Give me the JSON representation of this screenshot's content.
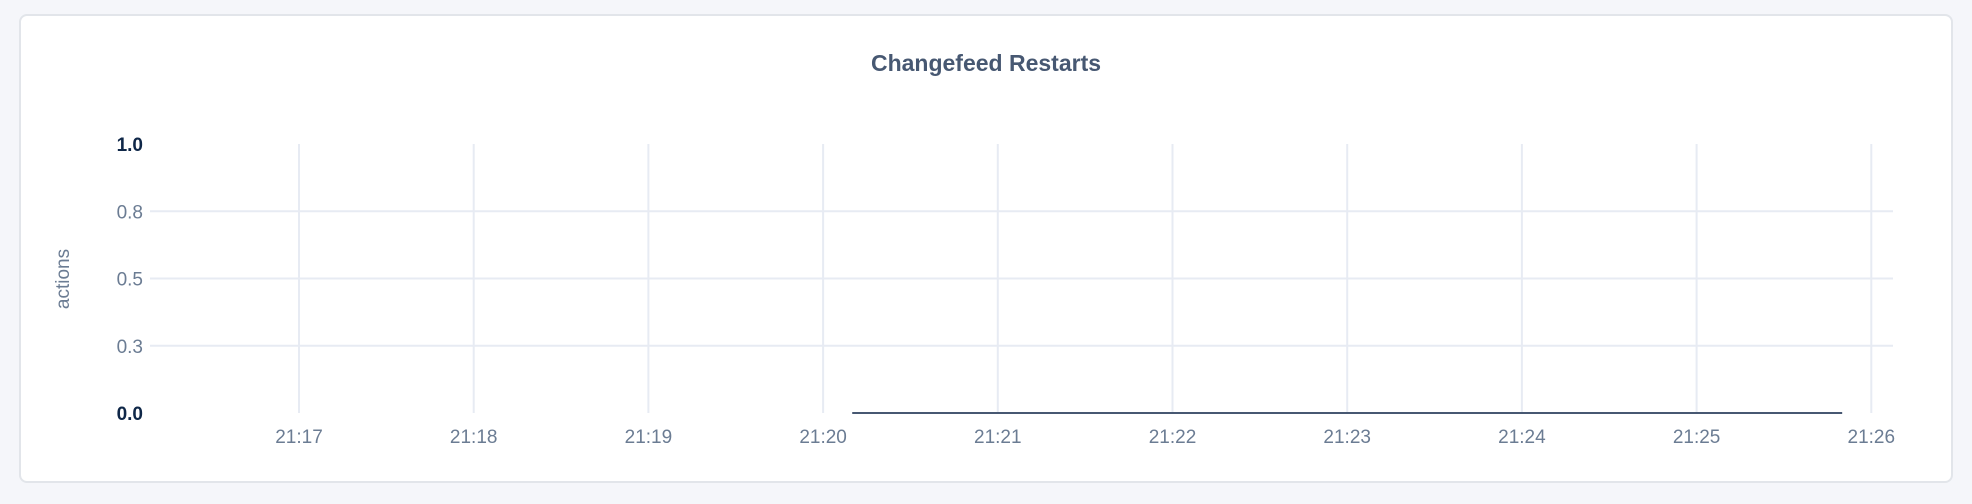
{
  "chart_data": {
    "type": "line",
    "title": "Changefeed Restarts",
    "xlabel": "",
    "ylabel": "actions",
    "ylim": [
      0,
      1
    ],
    "y_ticks": [
      {
        "value": 0,
        "label": "0.0",
        "strong": true
      },
      {
        "value": 0.25,
        "label": "0.3",
        "strong": false
      },
      {
        "value": 0.5,
        "label": "0.5",
        "strong": false
      },
      {
        "value": 0.75,
        "label": "0.8",
        "strong": false
      },
      {
        "value": 1,
        "label": "1.0",
        "strong": true
      }
    ],
    "x_ticks": [
      "21:17",
      "21:18",
      "21:19",
      "21:20",
      "21:21",
      "21:22",
      "21:23",
      "21:24",
      "21:25",
      "21:26"
    ],
    "grid": true,
    "series": [
      {
        "color": "#475872",
        "x": [
          "21:20:10",
          "21:25:50"
        ],
        "values": [
          0,
          0
        ]
      }
    ]
  },
  "colors": {
    "grid": "#e7ebf3",
    "line": "#475872",
    "title": "#475872"
  }
}
